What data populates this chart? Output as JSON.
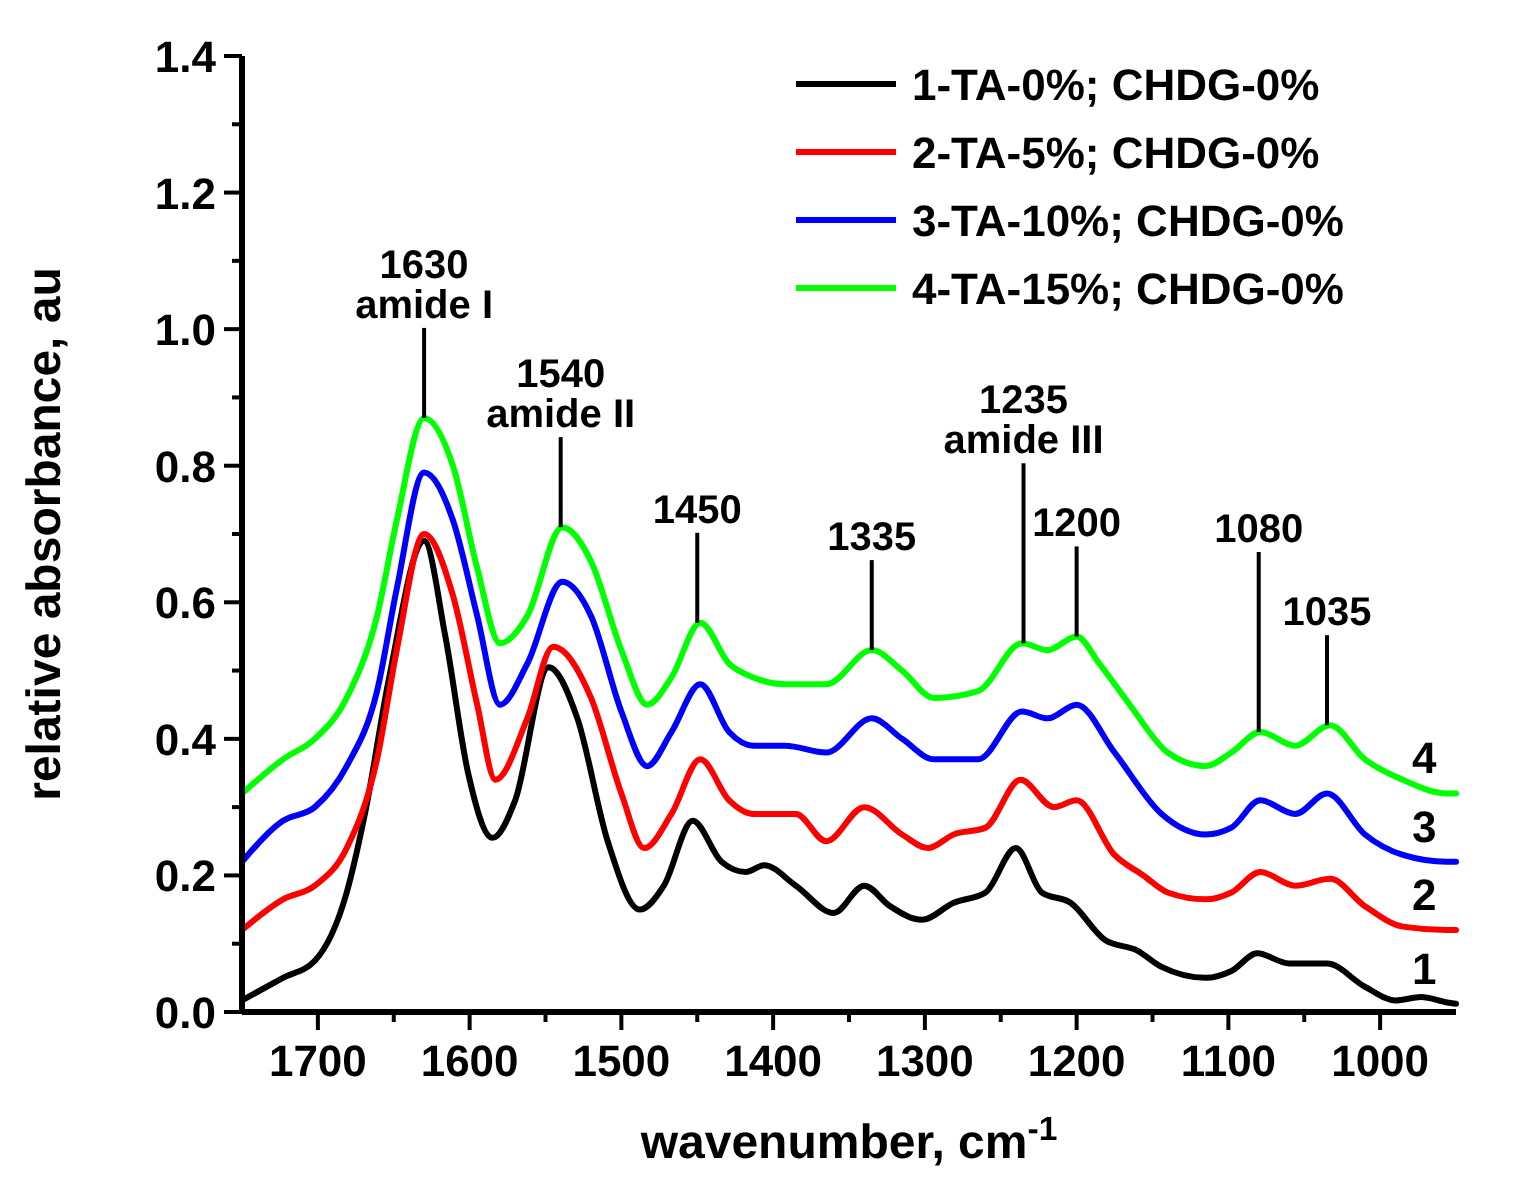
{
  "chart_data": {
    "type": "line",
    "xlabel": "wavenumber, cm$^{-1}$",
    "ylabel": "relative absorbance, au",
    "xlim": [
      1750,
      950
    ],
    "ylim": [
      0,
      1.4
    ],
    "xticks": [
      1700,
      {
        "value": 1650,
        "label": null
      },
      1600,
      {
        "value": 1550,
        "label": null
      },
      1500,
      {
        "value": 1450,
        "label": null
      },
      1400,
      {
        "value": 1350,
        "label": null
      },
      1300,
      {
        "value": 1250,
        "label": null
      },
      1200,
      {
        "value": 1150,
        "label": null
      },
      1100,
      {
        "value": 1050,
        "label": null
      },
      1000
    ],
    "yticks": [
      {
        "value": 0,
        "label": "0.0"
      },
      {
        "value": 0.1,
        "label": null
      },
      0.2,
      {
        "value": 0.3,
        "label": null
      },
      0.4,
      {
        "value": 0.5,
        "label": null
      },
      0.6,
      {
        "value": 0.7,
        "label": null
      },
      0.8,
      {
        "value": 0.9,
        "label": null
      },
      {
        "value": 1,
        "label": "1.0"
      },
      {
        "value": 1.1,
        "label": null
      },
      1.2,
      {
        "value": 1.3,
        "label": null
      },
      1.4
    ],
    "legend": "top right",
    "grid": false,
    "line_style": "solid",
    "marker": "none",
    "series": [
      {
        "name": "1-TA-0%; CHDG-0%",
        "color": "#000000",
        "x": [
          1750,
          1723,
          1702,
          1681,
          1669,
          1653,
          1630,
          1616,
          1601,
          1585,
          1570,
          1548,
          1529,
          1509,
          1488,
          1472,
          1453,
          1434,
          1418,
          1406,
          1385,
          1360,
          1340,
          1323,
          1302,
          1281,
          1260,
          1240,
          1223,
          1204,
          1181,
          1160,
          1144,
          1115,
          1098,
          1081,
          1060,
          1035,
          1010,
          990,
          973,
          956,
          950
        ],
        "values": [
          0.017,
          0.05,
          0.075,
          0.175,
          0.29,
          0.49,
          0.69,
          0.55,
          0.35,
          0.255,
          0.31,
          0.505,
          0.43,
          0.25,
          0.15,
          0.185,
          0.28,
          0.22,
          0.205,
          0.215,
          0.185,
          0.145,
          0.185,
          0.155,
          0.135,
          0.16,
          0.175,
          0.24,
          0.175,
          0.16,
          0.105,
          0.09,
          0.066,
          0.05,
          0.06,
          0.086,
          0.071,
          0.071,
          0.037,
          0.017,
          0.022,
          0.014,
          0.012
        ]
      },
      {
        "name": "2-TA-5%; CHDG-0%",
        "color": "#ff0000",
        "x": [
          1750,
          1723,
          1702,
          1681,
          1661,
          1648,
          1630,
          1611,
          1595,
          1583,
          1562,
          1545,
          1520,
          1500,
          1485,
          1467,
          1448,
          1429,
          1413,
          1405,
          1385,
          1365,
          1340,
          1315,
          1298,
          1281,
          1260,
          1237,
          1215,
          1200,
          1175,
          1156,
          1140,
          1115,
          1098,
          1079,
          1056,
          1033,
          1010,
          985,
          956,
          950
        ],
        "values": [
          0.12,
          0.165,
          0.185,
          0.24,
          0.37,
          0.53,
          0.7,
          0.61,
          0.45,
          0.34,
          0.43,
          0.535,
          0.46,
          0.32,
          0.24,
          0.29,
          0.37,
          0.31,
          0.29,
          0.29,
          0.29,
          0.25,
          0.3,
          0.26,
          0.24,
          0.26,
          0.27,
          0.34,
          0.3,
          0.31,
          0.23,
          0.2,
          0.175,
          0.165,
          0.175,
          0.205,
          0.185,
          0.195,
          0.155,
          0.125,
          0.12,
          0.12
        ]
      },
      {
        "name": "3-TA-10%; CHDG-0%",
        "color": "#0000ff",
        "x": [
          1750,
          1723,
          1702,
          1681,
          1661,
          1648,
          1630,
          1611,
          1595,
          1580,
          1562,
          1539,
          1520,
          1500,
          1483,
          1467,
          1448,
          1429,
          1413,
          1392,
          1365,
          1335,
          1315,
          1294,
          1265,
          1236,
          1219,
          1200,
          1175,
          1144,
          1115,
          1098,
          1079,
          1056,
          1035,
          1010,
          985,
          956,
          950
        ],
        "values": [
          0.22,
          0.28,
          0.3,
          0.36,
          0.47,
          0.62,
          0.79,
          0.72,
          0.58,
          0.45,
          0.51,
          0.63,
          0.58,
          0.44,
          0.36,
          0.41,
          0.48,
          0.41,
          0.39,
          0.39,
          0.38,
          0.43,
          0.4,
          0.37,
          0.37,
          0.44,
          0.43,
          0.45,
          0.38,
          0.29,
          0.26,
          0.27,
          0.31,
          0.29,
          0.32,
          0.26,
          0.23,
          0.22,
          0.22
        ]
      },
      {
        "name": "4-TA-15%; CHDG-0%",
        "color": "#00ff00",
        "x": [
          1750,
          1723,
          1702,
          1681,
          1661,
          1648,
          1630,
          1611,
          1595,
          1580,
          1562,
          1539,
          1520,
          1500,
          1483,
          1467,
          1448,
          1429,
          1413,
          1392,
          1365,
          1335,
          1315,
          1294,
          1265,
          1236,
          1219,
          1200,
          1185,
          1165,
          1140,
          1115,
          1098,
          1079,
          1056,
          1033,
          1010,
          985,
          956,
          950
        ],
        "values": [
          0.32,
          0.37,
          0.4,
          0.46,
          0.58,
          0.72,
          0.87,
          0.8,
          0.65,
          0.54,
          0.58,
          0.71,
          0.66,
          0.53,
          0.45,
          0.49,
          0.57,
          0.51,
          0.49,
          0.48,
          0.48,
          0.53,
          0.5,
          0.46,
          0.47,
          0.54,
          0.53,
          0.55,
          0.51,
          0.45,
          0.38,
          0.36,
          0.38,
          0.41,
          0.39,
          0.42,
          0.37,
          0.34,
          0.32,
          0.32
        ]
      }
    ],
    "annotations": [
      {
        "text": "1630\namide I",
        "x": 1630,
        "y": 0.87
      },
      {
        "text": "1540\namide II",
        "x": 1540,
        "y": 0.71
      },
      {
        "text": "1450",
        "x": 1450,
        "y": 0.57
      },
      {
        "text": "1335",
        "x": 1335,
        "y": 0.53
      },
      {
        "text": "1235\namide III",
        "x": 1235,
        "y": 0.54
      },
      {
        "text": "1200",
        "x": 1200,
        "y": 0.55
      },
      {
        "text": "1080",
        "x": 1080,
        "y": 0.41
      },
      {
        "text": "1035",
        "x": 1035,
        "y": 0.42
      },
      "1",
      "2",
      "3",
      "4"
    ]
  }
}
